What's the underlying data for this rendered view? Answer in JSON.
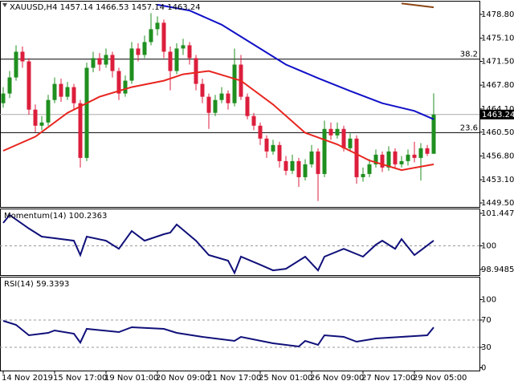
{
  "chart_data": [
    {
      "type": "candlestick",
      "title": "XAUUSD,H4  1457.14 1466.53 1457.14 1463.24",
      "bull_color": "#1f8f1f",
      "bear_color": "#dc1e3c",
      "open": [
        1465.0,
        1466.5,
        1469.0,
        1473.0,
        1471.5,
        1464.0,
        1461.5,
        1462.0,
        1465.5,
        1468.0,
        1466.0,
        1467.5,
        1465.0,
        1456.5,
        1470.5,
        1472.0,
        1471.0,
        1472.5,
        1470.0,
        1466.5,
        1468.5,
        1473.5,
        1472.5,
        1474.5,
        1476.5,
        1477.5,
        1473.0,
        1470.0,
        1473.5,
        1474.0,
        1472.0,
        1468.0,
        1466.0,
        1463.5,
        1465.5,
        1466.5,
        1465.0,
        1471.0,
        1466.0,
        1463.0,
        1461.5,
        1459.5,
        1457.5,
        1458.5,
        1456.0,
        1454.5,
        1456.0,
        1453.5,
        1455.5,
        1457.5,
        1454.0,
        1461.0,
        1460.0,
        1461.0,
        1458.0,
        1459.5,
        1453.5,
        1454.0,
        1455.5,
        1457.0,
        1455.0,
        1457.5,
        1455.5,
        1456.0,
        1457.0,
        1456.5,
        1458.0,
        1457.14
      ],
      "high": [
        1467.5,
        1470.0,
        1474.0,
        1473.8,
        1472.0,
        1464.8,
        1463.0,
        1466.3,
        1469.0,
        1468.8,
        1468.3,
        1468.0,
        1465.5,
        1471.3,
        1473.0,
        1472.8,
        1473.5,
        1473.0,
        1470.5,
        1469.3,
        1474.5,
        1474.3,
        1475.5,
        1479.0,
        1478.5,
        1478.0,
        1473.8,
        1474.3,
        1475.0,
        1474.5,
        1472.5,
        1468.8,
        1466.5,
        1466.3,
        1467.5,
        1467.0,
        1473.5,
        1472.5,
        1466.5,
        1463.5,
        1462.0,
        1460.0,
        1459.3,
        1459.0,
        1456.8,
        1457.0,
        1456.5,
        1456.3,
        1458.5,
        1458.0,
        1462.3,
        1462.0,
        1462.0,
        1461.5,
        1460.3,
        1460.0,
        1455.0,
        1456.3,
        1457.8,
        1457.5,
        1458.3,
        1458.0,
        1456.8,
        1457.8,
        1459.0,
        1458.8,
        1458.5,
        1466.53
      ],
      "low": [
        1464.3,
        1465.8,
        1468.5,
        1470.5,
        1463.2,
        1460.5,
        1460.8,
        1461.5,
        1465.0,
        1465.2,
        1465.5,
        1464.0,
        1455.0,
        1456.0,
        1469.8,
        1470.0,
        1470.5,
        1469.0,
        1465.5,
        1466.0,
        1468.0,
        1471.5,
        1472.0,
        1474.0,
        1475.5,
        1472.0,
        1467.0,
        1469.5,
        1472.5,
        1471.0,
        1467.0,
        1465.0,
        1461.0,
        1463.0,
        1465.0,
        1464.0,
        1464.5,
        1465.5,
        1462.5,
        1460.8,
        1458.5,
        1456.5,
        1457.0,
        1455.0,
        1453.8,
        1454.0,
        1452.0,
        1453.0,
        1455.0,
        1449.8,
        1453.5,
        1459.3,
        1459.5,
        1457.5,
        1457.5,
        1452.5,
        1452.8,
        1453.5,
        1455.0,
        1454.3,
        1454.5,
        1454.8,
        1455.0,
        1455.3,
        1455.8,
        1453.0,
        1456.8,
        1457.14
      ],
      "close": [
        1466.5,
        1469.0,
        1473.0,
        1471.5,
        1464.0,
        1461.5,
        1462.0,
        1465.5,
        1468.0,
        1466.0,
        1467.5,
        1465.0,
        1456.5,
        1470.5,
        1472.0,
        1471.0,
        1472.5,
        1470.0,
        1466.5,
        1468.5,
        1473.5,
        1472.5,
        1474.5,
        1476.5,
        1477.5,
        1473.0,
        1470.0,
        1473.5,
        1474.0,
        1472.0,
        1468.0,
        1466.0,
        1463.5,
        1465.5,
        1466.5,
        1465.0,
        1471.0,
        1466.0,
        1463.0,
        1461.5,
        1459.5,
        1457.5,
        1458.5,
        1456.0,
        1454.5,
        1456.0,
        1453.5,
        1455.5,
        1457.5,
        1454.0,
        1461.0,
        1460.0,
        1461.0,
        1458.0,
        1459.5,
        1453.5,
        1454.0,
        1455.5,
        1457.0,
        1455.0,
        1457.5,
        1455.5,
        1456.0,
        1457.0,
        1456.5,
        1458.0,
        1457.14,
        1463.24
      ],
      "lines": [
        {
          "color": "#e8251f",
          "x": [
            0,
            5,
            10,
            15,
            20,
            25,
            28,
            32,
            37,
            42,
            47,
            52,
            57,
            62,
            67
          ],
          "values": [
            1457.6,
            1459.8,
            1463.5,
            1466.0,
            1467.5,
            1468.5,
            1469.5,
            1470.0,
            1468.5,
            1464.8,
            1460.4,
            1458.6,
            1456.1,
            1454.6,
            1455.5
          ]
        },
        {
          "color": "#1010c8",
          "x": [
            24,
            29,
            34,
            39,
            44,
            49,
            54,
            59,
            64,
            67
          ],
          "values": [
            1480.3,
            1479.4,
            1477.2,
            1474.1,
            1471.0,
            1468.9,
            1466.9,
            1465.0,
            1463.8,
            1462.5
          ]
        },
        {
          "color": "#8b4513",
          "x": [
            62,
            67
          ],
          "values": [
            1480.5,
            1479.9
          ]
        }
      ],
      "fib_levels": [
        {
          "label": "38.2",
          "value": 1471.85
        },
        {
          "label": "23.6",
          "value": 1460.43
        }
      ],
      "last_price": 1463.24,
      "xlim": [
        -0.5,
        74.125
      ],
      "ylim": [
        1448.88,
        1480.91
      ],
      "yticks": [
        {
          "value": 1478.8,
          "label": "1478.80"
        },
        {
          "value": 1475.1,
          "label": "1475.10"
        },
        {
          "value": 1471.5,
          "label": "1471.50"
        },
        {
          "value": 1467.8,
          "label": "1467.80"
        },
        {
          "value": 1464.1,
          "label": "1464.10"
        },
        {
          "value": 1460.5,
          "label": "1460.50"
        },
        {
          "value": 1456.8,
          "label": "1456.80"
        },
        {
          "value": 1453.1,
          "label": "1453.10"
        },
        {
          "value": 1449.5,
          "label": "1449.50"
        }
      ]
    },
    {
      "type": "line",
      "title": "Momentum(14) 100.2363",
      "color": "#10107a",
      "x": [
        0,
        1,
        4,
        6,
        8,
        11,
        12,
        13,
        16,
        18,
        20,
        22,
        25,
        26,
        27,
        30,
        32,
        35,
        36,
        37,
        40,
        42,
        44,
        47,
        49,
        50,
        53,
        56,
        58,
        59,
        61,
        62,
        64,
        65,
        67
      ],
      "values": [
        101.02,
        101.37,
        100.77,
        100.41,
        100.34,
        100.23,
        99.59,
        100.41,
        100.23,
        99.87,
        100.66,
        100.23,
        100.52,
        100.59,
        100.95,
        100.23,
        99.59,
        99.34,
        98.8,
        99.52,
        99.16,
        98.91,
        98.98,
        99.52,
        98.91,
        99.52,
        99.87,
        99.52,
        100.05,
        100.23,
        99.87,
        100.3,
        99.59,
        99.8,
        100.2363
      ],
      "levels": [
        100
      ],
      "xlim": [
        -0.5,
        74.125
      ],
      "ylim": [
        98.699,
        101.66
      ],
      "yticks": [
        101.4474,
        100,
        98.9485
      ]
    },
    {
      "type": "line",
      "title": "RSI(14) 59.3393",
      "color": "#10107a",
      "x": [
        0,
        2,
        4,
        7,
        8,
        11,
        12,
        13,
        18,
        20,
        25,
        27,
        31,
        36,
        37,
        42,
        46,
        47,
        49,
        50,
        53,
        55,
        58,
        62,
        66,
        67
      ],
      "values": [
        68.8,
        62.9,
        47.6,
        51.2,
        54.7,
        50,
        37,
        57,
        52.4,
        59.4,
        57,
        51.2,
        45.3,
        39.4,
        45.3,
        35.9,
        31.2,
        39.4,
        33.5,
        47.6,
        45.3,
        38.2,
        42.9,
        45.3,
        47.6,
        59.3393
      ],
      "levels": [
        70,
        30
      ],
      "xlim": [
        -0.5,
        74.125
      ],
      "ylim": [
        -4.1,
        133.5
      ],
      "yticks": [
        100,
        70,
        30,
        0
      ],
      "xticks": [
        {
          "value": 0,
          "label": "14 Nov 2019"
        },
        {
          "value": 8,
          "label": "15 Nov 17:00"
        },
        {
          "value": 16,
          "label": "19 Nov 01:00"
        },
        {
          "value": 24,
          "label": "20 Nov 09:00"
        },
        {
          "value": 32,
          "label": "21 Nov 17:00"
        },
        {
          "value": 40,
          "label": "25 Nov 01:00"
        },
        {
          "value": 48,
          "label": "26 Nov 09:00"
        },
        {
          "value": 56,
          "label": "27 Nov 17:00"
        },
        {
          "value": 64,
          "label": "29 Nov 05:00"
        }
      ]
    }
  ]
}
